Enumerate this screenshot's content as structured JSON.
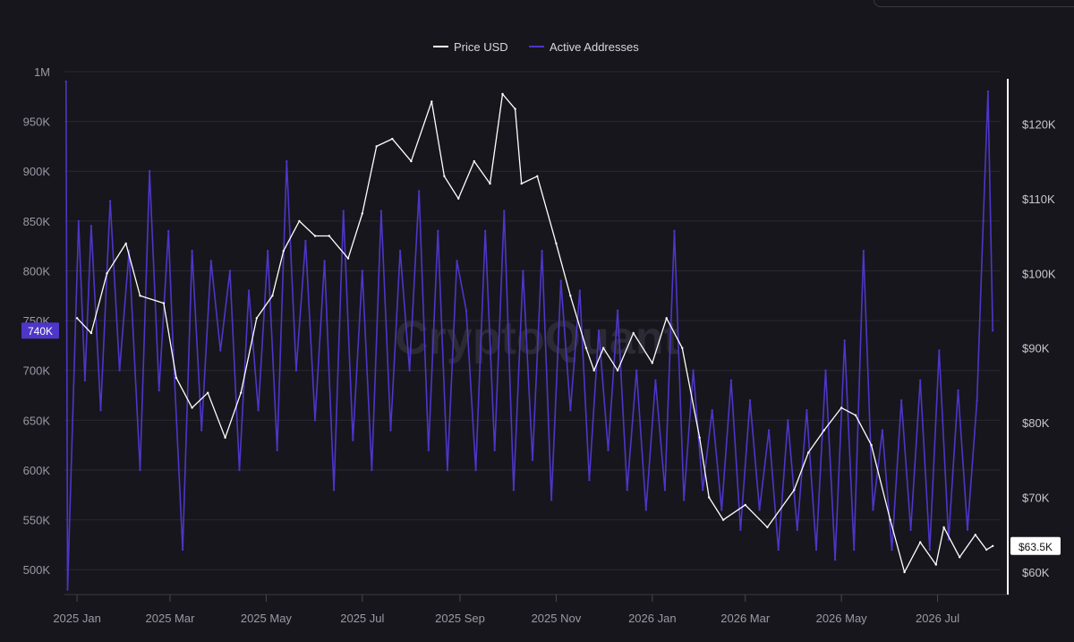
{
  "chart_data": {
    "type": "line",
    "watermark": "CryptoQuant",
    "legend": {
      "placement": "top-center",
      "entries": [
        {
          "name": "Price USD",
          "color": "#ffffff"
        },
        {
          "name": "Active Addresses",
          "color": "#4d36c8"
        }
      ]
    },
    "x_axis": {
      "ticks": [
        "2025 Jan",
        "2025 Mar",
        "2025 May",
        "2025 Jul",
        "2025 Sep",
        "2025 Nov",
        "2026 Jan",
        "2026 Mar",
        "2026 May",
        "2026 Jul"
      ],
      "range": [
        "2024-12-24",
        "2026-08-10"
      ]
    },
    "y_left": {
      "ticks": [
        "1M",
        "950K",
        "900K",
        "850K",
        "800K",
        "750K",
        "700K",
        "650K",
        "600K",
        "550K",
        "500K"
      ],
      "range": [
        475000,
        1000000
      ],
      "current_label": "740K",
      "current_value": 740000
    },
    "y_right": {
      "ticks": [
        "$120K",
        "$110K",
        "$100K",
        "$90K",
        "$80K",
        "$70K",
        "$60K"
      ],
      "range": [
        57000,
        127000
      ],
      "current_label": "$63.5K",
      "current_value": 63500
    },
    "grid": true,
    "series": [
      {
        "name": "Price USD",
        "axis": "right",
        "color": "#ffffff",
        "x": [
          "2025-01-01",
          "2025-01-10",
          "2025-01-20",
          "2025-02-01",
          "2025-02-10",
          "2025-02-25",
          "2025-03-05",
          "2025-03-15",
          "2025-03-25",
          "2025-04-05",
          "2025-04-15",
          "2025-04-25",
          "2025-05-05",
          "2025-05-12",
          "2025-05-22",
          "2025-06-01",
          "2025-06-10",
          "2025-06-22",
          "2025-07-01",
          "2025-07-10",
          "2025-07-20",
          "2025-08-01",
          "2025-08-14",
          "2025-08-22",
          "2025-08-31",
          "2025-09-10",
          "2025-09-20",
          "2025-09-28",
          "2025-10-06",
          "2025-10-10",
          "2025-10-20",
          "2025-11-01",
          "2025-11-10",
          "2025-11-20",
          "2025-11-25",
          "2025-12-01",
          "2025-12-10",
          "2025-12-20",
          "2026-01-01",
          "2026-01-10",
          "2026-01-20",
          "2026-01-31",
          "2026-02-06",
          "2026-02-15",
          "2026-03-01",
          "2026-03-15",
          "2026-04-01",
          "2026-04-10",
          "2026-04-20",
          "2026-05-01",
          "2026-05-10",
          "2026-05-20",
          "2026-06-01",
          "2026-06-10",
          "2026-06-20",
          "2026-06-30",
          "2026-07-05",
          "2026-07-15",
          "2026-07-25",
          "2026-08-01",
          "2026-08-05"
        ],
        "values": [
          94000,
          92000,
          100000,
          104000,
          97000,
          96000,
          86000,
          82000,
          84000,
          78000,
          84000,
          94000,
          97000,
          103000,
          107000,
          105000,
          105000,
          102000,
          108000,
          117000,
          118000,
          115000,
          123000,
          113000,
          110000,
          115000,
          112000,
          124000,
          122000,
          112000,
          113000,
          104000,
          97000,
          90000,
          87000,
          90000,
          87000,
          92000,
          88000,
          94000,
          90000,
          78000,
          70000,
          67000,
          69000,
          66000,
          71000,
          76000,
          79000,
          82000,
          81000,
          77000,
          67000,
          60000,
          64000,
          61000,
          66000,
          62000,
          65000,
          63000,
          63500
        ]
      },
      {
        "name": "Active Addresses",
        "axis": "left",
        "color": "#4d36c8",
        "x": [
          "2024-12-25",
          "2024-12-26",
          "2025-01-02",
          "2025-01-06",
          "2025-01-10",
          "2025-01-16",
          "2025-01-22",
          "2025-01-28",
          "2025-02-03",
          "2025-02-10",
          "2025-02-16",
          "2025-02-22",
          "2025-02-28",
          "2025-03-03",
          "2025-03-09",
          "2025-03-15",
          "2025-03-21",
          "2025-03-27",
          "2025-04-02",
          "2025-04-08",
          "2025-04-14",
          "2025-04-20",
          "2025-04-26",
          "2025-05-02",
          "2025-05-08",
          "2025-05-14",
          "2025-05-20",
          "2025-05-26",
          "2025-06-01",
          "2025-06-07",
          "2025-06-13",
          "2025-06-19",
          "2025-06-25",
          "2025-07-01",
          "2025-07-07",
          "2025-07-13",
          "2025-07-19",
          "2025-07-25",
          "2025-07-31",
          "2025-08-06",
          "2025-08-12",
          "2025-08-18",
          "2025-08-24",
          "2025-08-30",
          "2025-09-05",
          "2025-09-11",
          "2025-09-17",
          "2025-09-23",
          "2025-09-29",
          "2025-10-05",
          "2025-10-11",
          "2025-10-17",
          "2025-10-23",
          "2025-10-29",
          "2025-11-04",
          "2025-11-10",
          "2025-11-16",
          "2025-11-22",
          "2025-11-28",
          "2025-12-04",
          "2025-12-10",
          "2025-12-16",
          "2025-12-22",
          "2025-12-28",
          "2026-01-03",
          "2026-01-09",
          "2026-01-15",
          "2026-01-21",
          "2026-01-27",
          "2026-02-02",
          "2026-02-08",
          "2026-02-14",
          "2026-02-20",
          "2026-02-26",
          "2026-03-04",
          "2026-03-10",
          "2026-03-16",
          "2026-03-22",
          "2026-03-28",
          "2026-04-03",
          "2026-04-09",
          "2026-04-15",
          "2026-04-21",
          "2026-04-27",
          "2026-05-03",
          "2026-05-09",
          "2026-05-15",
          "2026-05-21",
          "2026-05-27",
          "2026-06-02",
          "2026-06-08",
          "2026-06-14",
          "2026-06-20",
          "2026-06-26",
          "2026-07-02",
          "2026-07-08",
          "2026-07-14",
          "2026-07-20",
          "2026-07-26",
          "2026-07-30",
          "2026-08-02",
          "2026-08-05"
        ],
        "values": [
          990000,
          480000,
          850000,
          690000,
          845000,
          660000,
          870000,
          700000,
          820000,
          600000,
          900000,
          680000,
          840000,
          720000,
          520000,
          820000,
          640000,
          810000,
          720000,
          800000,
          600000,
          780000,
          660000,
          820000,
          620000,
          910000,
          700000,
          830000,
          650000,
          810000,
          580000,
          860000,
          630000,
          800000,
          600000,
          860000,
          640000,
          820000,
          700000,
          880000,
          620000,
          840000,
          600000,
          810000,
          760000,
          600000,
          840000,
          620000,
          860000,
          580000,
          800000,
          610000,
          820000,
          570000,
          790000,
          660000,
          780000,
          590000,
          740000,
          620000,
          760000,
          580000,
          700000,
          560000,
          690000,
          580000,
          840000,
          570000,
          700000,
          580000,
          660000,
          560000,
          690000,
          540000,
          670000,
          560000,
          640000,
          520000,
          650000,
          540000,
          660000,
          520000,
          700000,
          510000,
          730000,
          520000,
          820000,
          560000,
          640000,
          520000,
          670000,
          540000,
          690000,
          520000,
          720000,
          530000,
          680000,
          540000,
          670000,
          850000,
          980000,
          740000
        ]
      }
    ]
  }
}
